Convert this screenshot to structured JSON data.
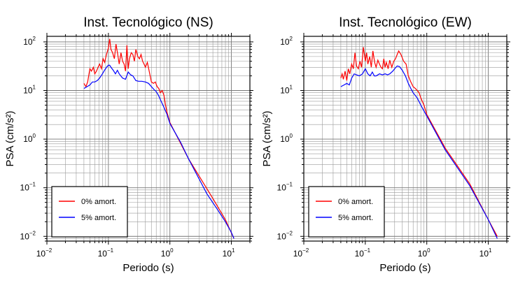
{
  "chart_data": [
    {
      "type": "line",
      "title": "Inst. Tecnológico (NS)",
      "xlabel": "Periodo (s)",
      "ylabel": "PSA (cm/s²)",
      "xscale": "log",
      "yscale": "log",
      "xlim": [
        0.01,
        20
      ],
      "ylim": [
        0.008,
        130
      ],
      "grid": true,
      "legend_position": "bottom-left",
      "x_ticks": [
        {
          "base": "10",
          "exp": "−2"
        },
        {
          "base": "10",
          "exp": "−1"
        },
        {
          "base": "10",
          "exp": "0"
        },
        {
          "base": "10",
          "exp": "1"
        }
      ],
      "y_ticks": [
        {
          "base": "10",
          "exp": "−2"
        },
        {
          "base": "10",
          "exp": "−1"
        },
        {
          "base": "10",
          "exp": "0"
        },
        {
          "base": "10",
          "exp": "1"
        },
        {
          "base": "10",
          "exp": "2"
        }
      ],
      "series": [
        {
          "name": "0% amort.",
          "color": "#ff0000",
          "x": [
            0.04,
            0.043,
            0.046,
            0.05,
            0.053,
            0.057,
            0.06,
            0.064,
            0.068,
            0.072,
            0.077,
            0.082,
            0.087,
            0.093,
            0.1,
            0.105,
            0.11,
            0.117,
            0.125,
            0.133,
            0.142,
            0.15,
            0.16,
            0.17,
            0.18,
            0.19,
            0.2,
            0.21,
            0.22,
            0.235,
            0.25,
            0.265,
            0.28,
            0.3,
            0.32,
            0.34,
            0.36,
            0.38,
            0.4,
            0.43,
            0.46,
            0.5,
            0.54,
            0.58,
            0.62,
            0.66,
            0.7,
            0.75,
            0.8,
            0.85,
            0.9,
            1.0,
            2.0,
            5.0,
            8.0,
            11.0
          ],
          "y": [
            14,
            12,
            15,
            28,
            25,
            30,
            22,
            25,
            30,
            35,
            28,
            45,
            38,
            55,
            75,
            115,
            70,
            60,
            45,
            90,
            55,
            35,
            60,
            40,
            35,
            25,
            85,
            28,
            45,
            60,
            55,
            40,
            70,
            50,
            45,
            55,
            40,
            35,
            30,
            38,
            25,
            15,
            14,
            15,
            12,
            11,
            9,
            10,
            8,
            5,
            3.5,
            2.2,
            0.4,
            0.06,
            0.022,
            0.009
          ]
        },
        {
          "name": "5% amort.",
          "color": "#0000ff",
          "x": [
            0.04,
            0.045,
            0.05,
            0.055,
            0.06,
            0.066,
            0.072,
            0.08,
            0.088,
            0.095,
            0.1,
            0.105,
            0.11,
            0.12,
            0.13,
            0.14,
            0.15,
            0.17,
            0.19,
            0.21,
            0.23,
            0.25,
            0.28,
            0.31,
            0.35,
            0.4,
            0.45,
            0.5,
            0.55,
            0.6,
            0.65,
            0.7,
            0.8,
            0.9,
            1.0,
            1.5,
            2.0,
            3.0,
            4.0,
            6.0,
            8.0,
            10.0,
            11.0
          ],
          "y": [
            11,
            12,
            13,
            15,
            15,
            16,
            18,
            22,
            27,
            31,
            33,
            33,
            30,
            26,
            22,
            26,
            22,
            18,
            17,
            24,
            21,
            20,
            16,
            15.5,
            15.5,
            15,
            14,
            12,
            10.5,
            9.5,
            8,
            6.5,
            4.5,
            3.2,
            2.1,
            0.85,
            0.4,
            0.15,
            0.075,
            0.035,
            0.02,
            0.012,
            0.009
          ]
        }
      ]
    },
    {
      "type": "line",
      "title": "Inst. Tecnológico (EW)",
      "xlabel": "Periodo (s)",
      "ylabel": "PSA (cm/s²)",
      "xscale": "log",
      "yscale": "log",
      "xlim": [
        0.01,
        20
      ],
      "ylim": [
        0.008,
        130
      ],
      "grid": true,
      "legend_position": "bottom-left",
      "x_ticks": [
        {
          "base": "10",
          "exp": "−2"
        },
        {
          "base": "10",
          "exp": "−1"
        },
        {
          "base": "10",
          "exp": "0"
        },
        {
          "base": "10",
          "exp": "1"
        }
      ],
      "y_ticks": [
        {
          "base": "10",
          "exp": "−2"
        },
        {
          "base": "10",
          "exp": "−1"
        },
        {
          "base": "10",
          "exp": "0"
        },
        {
          "base": "10",
          "exp": "1"
        },
        {
          "base": "10",
          "exp": "2"
        }
      ],
      "series": [
        {
          "name": "0% amort.",
          "color": "#ff0000",
          "x": [
            0.04,
            0.042,
            0.044,
            0.047,
            0.05,
            0.053,
            0.056,
            0.06,
            0.064,
            0.068,
            0.072,
            0.077,
            0.082,
            0.087,
            0.093,
            0.1,
            0.105,
            0.11,
            0.118,
            0.125,
            0.133,
            0.142,
            0.15,
            0.16,
            0.17,
            0.18,
            0.19,
            0.2,
            0.21,
            0.22,
            0.235,
            0.25,
            0.27,
            0.29,
            0.31,
            0.33,
            0.35,
            0.38,
            0.42,
            0.46,
            0.5,
            0.55,
            0.6,
            0.65,
            0.7,
            0.75,
            0.8,
            0.9,
            1.0,
            2.0,
            5.0,
            10.0,
            14.0
          ],
          "y": [
            18,
            22,
            17,
            25,
            16,
            28,
            22,
            35,
            28,
            60,
            32,
            28,
            40,
            30,
            78,
            40,
            60,
            35,
            50,
            30,
            65,
            38,
            30,
            42,
            35,
            30,
            28,
            45,
            30,
            38,
            28,
            42,
            30,
            40,
            45,
            55,
            65,
            55,
            40,
            35,
            20,
            15,
            12,
            11,
            10,
            9,
            7,
            5,
            3.2,
            0.65,
            0.12,
            0.022,
            0.01
          ]
        },
        {
          "name": "5% amort.",
          "color": "#0000ff",
          "x": [
            0.04,
            0.045,
            0.05,
            0.055,
            0.06,
            0.066,
            0.072,
            0.08,
            0.09,
            0.1,
            0.11,
            0.12,
            0.13,
            0.14,
            0.15,
            0.17,
            0.19,
            0.21,
            0.23,
            0.25,
            0.28,
            0.3,
            0.33,
            0.36,
            0.4,
            0.45,
            0.5,
            0.55,
            0.6,
            0.7,
            0.8,
            0.9,
            1.0,
            2.0,
            5.0,
            10.0,
            14.0
          ],
          "y": [
            12,
            13,
            14,
            13,
            18,
            22,
            21,
            20,
            22,
            28,
            22,
            20,
            24,
            20,
            20,
            22,
            21,
            22,
            21,
            22,
            25,
            28,
            32,
            31,
            26,
            20,
            14,
            11,
            9,
            7,
            5,
            3.8,
            3,
            0.6,
            0.11,
            0.022,
            0.009
          ]
        }
      ]
    }
  ]
}
